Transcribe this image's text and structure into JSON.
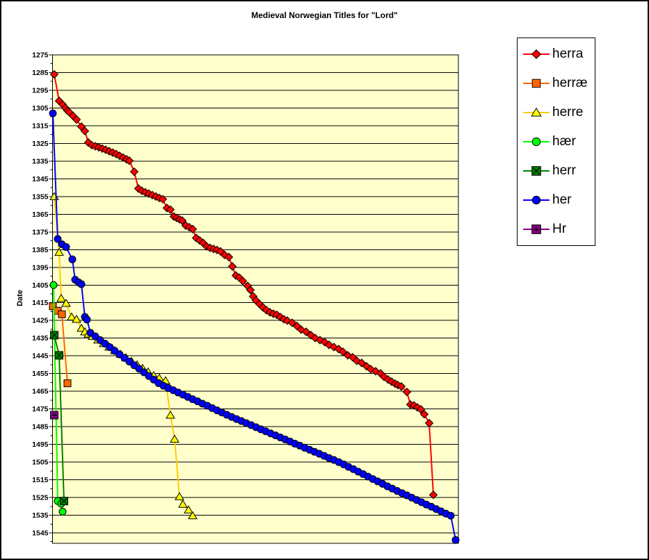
{
  "title": "Medieval Norwegian Titles for \"Lord\"",
  "chart_data": {
    "type": "line",
    "title": "Medieval Norwegian Titles for \"Lord\"",
    "xlabel": "",
    "ylabel": "Date",
    "x_axis_note": "no x-axis tick labels are visible; x values below are horizontal plot positions in screenshot pixels (plot spans x=76..659)",
    "points_format": "[x_position_px, year]",
    "y_ticks": [
      1275,
      1285,
      1295,
      1305,
      1315,
      1325,
      1335,
      1345,
      1355,
      1365,
      1375,
      1385,
      1395,
      1405,
      1415,
      1425,
      1435,
      1445,
      1455,
      1465,
      1475,
      1485,
      1495,
      1505,
      1515,
      1525,
      1535,
      1545
    ],
    "y_min": 1275,
    "y_max": 1545,
    "y_tick_step": 10,
    "y_axis_inverted": true,
    "grid": "horizontal",
    "grid_color": "#000000",
    "plot_bg": "#FFFFCC",
    "legend_position": "right",
    "series": [
      {
        "name": "herra",
        "marker": "diamond",
        "color": "#FF0000",
        "marker_fill": "#FF0000",
        "points": [
          [
            78,
            1286
          ],
          [
            85,
            1301
          ],
          [
            90,
            1303
          ],
          [
            94,
            1305
          ],
          [
            97,
            1306.5
          ],
          [
            100,
            1307.5
          ],
          [
            105,
            1309.5
          ],
          [
            110,
            1311.5
          ],
          [
            117,
            1315.5
          ],
          [
            122,
            1318
          ],
          [
            127,
            1324.5
          ],
          [
            132,
            1326
          ],
          [
            137,
            1326.6
          ],
          [
            142,
            1327.2
          ],
          [
            147,
            1327.9
          ],
          [
            152,
            1328.6
          ],
          [
            157,
            1329.4
          ],
          [
            162,
            1330.2
          ],
          [
            167,
            1331
          ],
          [
            172,
            1332
          ],
          [
            177,
            1333
          ],
          [
            182,
            1334
          ],
          [
            186,
            1334.8
          ],
          [
            193,
            1341
          ],
          [
            199,
            1350.5
          ],
          [
            204,
            1351.8
          ],
          [
            209,
            1352.6
          ],
          [
            214,
            1353.4
          ],
          [
            219,
            1354.2
          ],
          [
            224,
            1355
          ],
          [
            229,
            1355.8
          ],
          [
            234,
            1356.5
          ],
          [
            240,
            1361.5
          ],
          [
            245,
            1362.4
          ],
          [
            250,
            1366.3
          ],
          [
            254,
            1367.1
          ],
          [
            258,
            1367.9
          ],
          [
            262,
            1368.6
          ],
          [
            267,
            1371.4
          ],
          [
            272,
            1372.3
          ],
          [
            277,
            1373.4
          ],
          [
            282,
            1378.4
          ],
          [
            287,
            1379.8
          ],
          [
            292,
            1381.2
          ],
          [
            297,
            1383.2
          ],
          [
            302,
            1384
          ],
          [
            307,
            1384.6
          ],
          [
            312,
            1385.2
          ],
          [
            317,
            1386
          ],
          [
            323,
            1388
          ],
          [
            329,
            1389.2
          ],
          [
            334,
            1394.5
          ],
          [
            339,
            1399.6
          ],
          [
            344,
            1400.8
          ],
          [
            349,
            1402.7
          ],
          [
            356,
            1405.5
          ],
          [
            360,
            1407.8
          ],
          [
            364,
            1411.4
          ],
          [
            368,
            1413.7
          ],
          [
            373,
            1415.7
          ],
          [
            378,
            1417.6
          ],
          [
            383,
            1419.2
          ],
          [
            388,
            1420.4
          ],
          [
            393,
            1421.2
          ],
          [
            398,
            1421.8
          ],
          [
            403,
            1423.1
          ],
          [
            408,
            1424.3
          ],
          [
            413,
            1425.1
          ],
          [
            420,
            1426.3
          ],
          [
            427,
            1428.2
          ],
          [
            433,
            1430.2
          ],
          [
            440,
            1431.4
          ],
          [
            447,
            1433.3
          ],
          [
            453,
            1434.9
          ],
          [
            460,
            1436.1
          ],
          [
            467,
            1437.3
          ],
          [
            473,
            1438.8
          ],
          [
            480,
            1440
          ],
          [
            487,
            1441.2
          ],
          [
            493,
            1442.7
          ],
          [
            500,
            1444.7
          ],
          [
            507,
            1445.8
          ],
          [
            513,
            1447.8
          ],
          [
            520,
            1449
          ],
          [
            527,
            1450.9
          ],
          [
            533,
            1452.5
          ],
          [
            540,
            1453.7
          ],
          [
            547,
            1454.9
          ],
          [
            552,
            1456.8
          ],
          [
            558,
            1458.4
          ],
          [
            563,
            1459.6
          ],
          [
            568,
            1460.7
          ],
          [
            572,
            1461.5
          ],
          [
            577,
            1462.3
          ],
          [
            585,
            1465.4
          ],
          [
            590,
            1472.5
          ],
          [
            595,
            1473
          ],
          [
            600,
            1474.1
          ],
          [
            605,
            1475.2
          ],
          [
            610,
            1478
          ],
          [
            617,
            1483
          ],
          [
            623,
            1523.5
          ]
        ]
      },
      {
        "name": "herræ",
        "marker": "square",
        "color": "#FF6600",
        "marker_fill": "#FF6600",
        "points": [
          [
            76,
            1417
          ],
          [
            83,
            1419.5
          ],
          [
            89,
            1421.5
          ],
          [
            97,
            1460.5
          ]
        ]
      },
      {
        "name": "herre",
        "marker": "triangle",
        "color": "#FFCC00",
        "marker_fill": "#FFFF00",
        "points": [
          [
            78,
            1355
          ],
          [
            85,
            1386.5
          ],
          [
            88,
            1412.5
          ],
          [
            95,
            1415.3
          ],
          [
            103,
            1423
          ],
          [
            110,
            1424.3
          ],
          [
            117,
            1429.4
          ],
          [
            122,
            1431.4
          ],
          [
            127,
            1432.6
          ],
          [
            133,
            1434
          ],
          [
            141,
            1436
          ],
          [
            149,
            1438
          ],
          [
            157,
            1440
          ],
          [
            165,
            1442
          ],
          [
            173,
            1444
          ],
          [
            181,
            1446
          ],
          [
            189,
            1448
          ],
          [
            197,
            1450
          ],
          [
            205,
            1452
          ],
          [
            213,
            1454
          ],
          [
            221,
            1456
          ],
          [
            229,
            1457.5
          ],
          [
            238,
            1459
          ],
          [
            245,
            1478.5
          ],
          [
            251,
            1492
          ],
          [
            258,
            1524.5
          ],
          [
            263,
            1528.8
          ],
          [
            271,
            1532
          ],
          [
            277,
            1535.3
          ]
        ]
      },
      {
        "name": "hær",
        "marker": "circle",
        "color": "#00FF00",
        "marker_fill": "#00FF00",
        "points": [
          [
            77,
            1405
          ],
          [
            83,
            1527
          ],
          [
            88,
            1528.5
          ],
          [
            90,
            1533
          ]
        ]
      },
      {
        "name": "herr",
        "marker": "x-square",
        "color": "#008000",
        "marker_fill": "#008000",
        "points": [
          [
            78,
            1433.3
          ],
          [
            85,
            1444.7
          ],
          [
            92,
            1527
          ]
        ]
      },
      {
        "name": "her",
        "marker": "circle",
        "color": "#0000FF",
        "marker_fill": "#0000FF",
        "points": [
          [
            76,
            1308
          ],
          [
            83,
            1379
          ],
          [
            89,
            1382
          ],
          [
            95,
            1383.5
          ],
          [
            104,
            1390.5
          ],
          [
            108,
            1402
          ],
          [
            113,
            1403.5
          ],
          [
            117,
            1404.5
          ],
          [
            122,
            1423
          ],
          [
            125,
            1424.5
          ],
          [
            130,
            1432
          ],
          [
            137,
            1434
          ],
          [
            144,
            1436.1
          ],
          [
            151,
            1438.1
          ],
          [
            158,
            1440.1
          ],
          [
            165,
            1442.2
          ],
          [
            172,
            1444.2
          ],
          [
            179,
            1446.2
          ],
          [
            186,
            1448.2
          ],
          [
            193,
            1450.3
          ],
          [
            200,
            1452.3
          ],
          [
            207,
            1454.3
          ],
          [
            214,
            1456.4
          ],
          [
            221,
            1458.4
          ],
          [
            228,
            1460.4
          ],
          [
            235,
            1461.9
          ],
          [
            242,
            1463.2
          ],
          [
            249,
            1464.4
          ],
          [
            256,
            1465.7
          ],
          [
            263,
            1466.9
          ],
          [
            270,
            1468.2
          ],
          [
            277,
            1469.5
          ],
          [
            284,
            1470.7
          ],
          [
            291,
            1472
          ],
          [
            298,
            1473.2
          ],
          [
            305,
            1474.5
          ],
          [
            312,
            1475.8
          ],
          [
            319,
            1477
          ],
          [
            326,
            1478.3
          ],
          [
            333,
            1479.5
          ],
          [
            340,
            1480.7
          ],
          [
            347,
            1481.8
          ],
          [
            354,
            1483
          ],
          [
            361,
            1484.1
          ],
          [
            368,
            1485.3
          ],
          [
            375,
            1486.5
          ],
          [
            382,
            1487.6
          ],
          [
            389,
            1488.8
          ],
          [
            396,
            1489.9
          ],
          [
            403,
            1491.1
          ],
          [
            410,
            1492.2
          ],
          [
            417,
            1493.4
          ],
          [
            424,
            1494.6
          ],
          [
            431,
            1495.7
          ],
          [
            438,
            1496.9
          ],
          [
            445,
            1498
          ],
          [
            452,
            1499.2
          ],
          [
            459,
            1500.3
          ],
          [
            466,
            1501.5
          ],
          [
            473,
            1502.7
          ],
          [
            480,
            1503.8
          ],
          [
            487,
            1505
          ],
          [
            494,
            1506.3
          ],
          [
            501,
            1507.7
          ],
          [
            508,
            1509
          ],
          [
            515,
            1510.4
          ],
          [
            522,
            1511.8
          ],
          [
            529,
            1513.2
          ],
          [
            536,
            1514.6
          ],
          [
            543,
            1515.9
          ],
          [
            550,
            1517.3
          ],
          [
            557,
            1518.7
          ],
          [
            564,
            1520
          ],
          [
            571,
            1521.3
          ],
          [
            578,
            1522.6
          ],
          [
            585,
            1523.8
          ],
          [
            592,
            1525.1
          ],
          [
            599,
            1526.4
          ],
          [
            606,
            1527.7
          ],
          [
            613,
            1529
          ],
          [
            620,
            1530.2
          ],
          [
            627,
            1531.5
          ],
          [
            634,
            1532.8
          ],
          [
            641,
            1534.1
          ],
          [
            648,
            1535.3
          ],
          [
            655,
            1549
          ]
        ]
      },
      {
        "name": "Hr",
        "marker": "plus-square",
        "color": "#800080",
        "marker_fill": "#800080",
        "points": [
          [
            78,
            1478.5
          ]
        ]
      }
    ]
  },
  "legend": {
    "entries": [
      "herra",
      "herræ",
      "herre",
      "hær",
      "herr",
      "her",
      "Hr"
    ]
  }
}
